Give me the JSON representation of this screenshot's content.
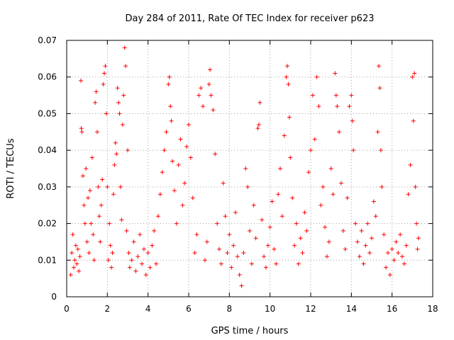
{
  "chart_data": {
    "type": "scatter",
    "title": "Day 284 of 2011, Rate Of TEC Index for receiver p623",
    "xlabel": "GPS time / hours",
    "ylabel": "ROTI / TECUs",
    "xlim": [
      0,
      18
    ],
    "ylim": [
      0,
      0.07
    ],
    "x_ticks": [
      "0",
      "2",
      "4",
      "6",
      "8",
      "10",
      "12",
      "14",
      "16",
      "18"
    ],
    "y_ticks": [
      "0",
      "0.01",
      "0.02",
      "0.03",
      "0.04",
      "0.05",
      "0.06",
      "0.07"
    ],
    "grid": true,
    "marker": "+",
    "series": [
      {
        "color": "#ff0000",
        "points": [
          [
            0.2,
            0.006
          ],
          [
            0.25,
            0.012
          ],
          [
            0.3,
            0.017
          ],
          [
            0.35,
            0.008
          ],
          [
            0.4,
            0.01
          ],
          [
            0.45,
            0.014
          ],
          [
            0.5,
            0.009
          ],
          [
            0.55,
            0.013
          ],
          [
            0.6,
            0.007
          ],
          [
            0.65,
            0.011
          ],
          [
            0.7,
            0.059
          ],
          [
            0.72,
            0.046
          ],
          [
            0.75,
            0.045
          ],
          [
            0.8,
            0.033
          ],
          [
            0.85,
            0.025
          ],
          [
            0.9,
            0.02
          ],
          [
            0.95,
            0.035
          ],
          [
            1.0,
            0.015
          ],
          [
            1.05,
            0.027
          ],
          [
            1.1,
            0.012
          ],
          [
            1.15,
            0.029
          ],
          [
            1.2,
            0.02
          ],
          [
            1.25,
            0.038
          ],
          [
            1.3,
            0.017
          ],
          [
            1.35,
            0.01
          ],
          [
            1.4,
            0.053
          ],
          [
            1.45,
            0.056
          ],
          [
            1.5,
            0.045
          ],
          [
            1.55,
            0.03
          ],
          [
            1.6,
            0.022
          ],
          [
            1.65,
            0.015
          ],
          [
            1.7,
            0.025
          ],
          [
            1.75,
            0.032
          ],
          [
            1.8,
            0.058
          ],
          [
            1.85,
            0.061
          ],
          [
            1.9,
            0.063
          ],
          [
            1.95,
            0.05
          ],
          [
            2.0,
            0.03
          ],
          [
            2.05,
            0.01
          ],
          [
            2.1,
            0.02
          ],
          [
            2.15,
            0.014
          ],
          [
            2.2,
            0.008
          ],
          [
            2.25,
            0.012
          ],
          [
            2.3,
            0.028
          ],
          [
            2.35,
            0.036
          ],
          [
            2.4,
            0.042
          ],
          [
            2.45,
            0.039
          ],
          [
            2.5,
            0.057
          ],
          [
            2.55,
            0.053
          ],
          [
            2.6,
            0.05
          ],
          [
            2.65,
            0.03
          ],
          [
            2.7,
            0.021
          ],
          [
            2.75,
            0.047
          ],
          [
            2.8,
            0.055
          ],
          [
            2.85,
            0.068
          ],
          [
            2.9,
            0.063
          ],
          [
            2.95,
            0.018
          ],
          [
            3.0,
            0.04
          ],
          [
            3.05,
            0.012
          ],
          [
            3.1,
            0.008
          ],
          [
            3.2,
            0.01
          ],
          [
            3.3,
            0.015
          ],
          [
            3.4,
            0.007
          ],
          [
            3.5,
            0.011
          ],
          [
            3.6,
            0.017
          ],
          [
            3.7,
            0.009
          ],
          [
            3.8,
            0.013
          ],
          [
            3.9,
            0.006
          ],
          [
            4.0,
            0.012
          ],
          [
            4.1,
            0.008
          ],
          [
            4.2,
            0.014
          ],
          [
            4.3,
            0.018
          ],
          [
            4.4,
            0.009
          ],
          [
            4.5,
            0.022
          ],
          [
            4.6,
            0.028
          ],
          [
            4.7,
            0.034
          ],
          [
            4.8,
            0.04
          ],
          [
            4.9,
            0.045
          ],
          [
            5.0,
            0.058
          ],
          [
            5.05,
            0.06
          ],
          [
            5.1,
            0.052
          ],
          [
            5.15,
            0.048
          ],
          [
            5.2,
            0.037
          ],
          [
            5.3,
            0.029
          ],
          [
            5.4,
            0.02
          ],
          [
            5.5,
            0.036
          ],
          [
            5.6,
            0.043
          ],
          [
            5.7,
            0.025
          ],
          [
            5.8,
            0.031
          ],
          [
            5.9,
            0.041
          ],
          [
            6.0,
            0.047
          ],
          [
            6.1,
            0.038
          ],
          [
            6.2,
            0.027
          ],
          [
            6.3,
            0.012
          ],
          [
            6.4,
            0.017
          ],
          [
            6.5,
            0.055
          ],
          [
            6.6,
            0.057
          ],
          [
            6.7,
            0.052
          ],
          [
            6.8,
            0.01
          ],
          [
            6.9,
            0.015
          ],
          [
            7.0,
            0.058
          ],
          [
            7.05,
            0.062
          ],
          [
            7.1,
            0.055
          ],
          [
            7.2,
            0.051
          ],
          [
            7.3,
            0.039
          ],
          [
            7.4,
            0.02
          ],
          [
            7.5,
            0.013
          ],
          [
            7.6,
            0.009
          ],
          [
            7.7,
            0.031
          ],
          [
            7.8,
            0.022
          ],
          [
            7.9,
            0.012
          ],
          [
            8.0,
            0.017
          ],
          [
            8.1,
            0.008
          ],
          [
            8.2,
            0.014
          ],
          [
            8.3,
            0.023
          ],
          [
            8.4,
            0.011
          ],
          [
            8.5,
            0.006
          ],
          [
            8.6,
            0.003
          ],
          [
            8.7,
            0.012
          ],
          [
            8.8,
            0.035
          ],
          [
            8.9,
            0.03
          ],
          [
            9.0,
            0.018
          ],
          [
            9.1,
            0.009
          ],
          [
            9.2,
            0.025
          ],
          [
            9.3,
            0.016
          ],
          [
            9.4,
            0.046
          ],
          [
            9.45,
            0.047
          ],
          [
            9.5,
            0.053
          ],
          [
            9.6,
            0.021
          ],
          [
            9.7,
            0.011
          ],
          [
            9.8,
            0.008
          ],
          [
            9.9,
            0.014
          ],
          [
            10.0,
            0.019
          ],
          [
            10.1,
            0.026
          ],
          [
            10.2,
            0.013
          ],
          [
            10.3,
            0.009
          ],
          [
            10.4,
            0.028
          ],
          [
            10.5,
            0.035
          ],
          [
            10.6,
            0.022
          ],
          [
            10.7,
            0.044
          ],
          [
            10.8,
            0.06
          ],
          [
            10.85,
            0.063
          ],
          [
            10.9,
            0.058
          ],
          [
            10.95,
            0.049
          ],
          [
            11.0,
            0.038
          ],
          [
            11.1,
            0.027
          ],
          [
            11.2,
            0.014
          ],
          [
            11.3,
            0.02
          ],
          [
            11.4,
            0.009
          ],
          [
            11.5,
            0.016
          ],
          [
            11.6,
            0.012
          ],
          [
            11.7,
            0.023
          ],
          [
            11.8,
            0.018
          ],
          [
            11.9,
            0.034
          ],
          [
            12.0,
            0.04
          ],
          [
            12.1,
            0.055
          ],
          [
            12.2,
            0.043
          ],
          [
            12.3,
            0.06
          ],
          [
            12.4,
            0.052
          ],
          [
            12.5,
            0.025
          ],
          [
            12.6,
            0.03
          ],
          [
            12.7,
            0.019
          ],
          [
            12.8,
            0.011
          ],
          [
            12.9,
            0.015
          ],
          [
            13.0,
            0.035
          ],
          [
            13.1,
            0.028
          ],
          [
            13.2,
            0.061
          ],
          [
            13.25,
            0.055
          ],
          [
            13.3,
            0.052
          ],
          [
            13.4,
            0.045
          ],
          [
            13.5,
            0.031
          ],
          [
            13.6,
            0.018
          ],
          [
            13.7,
            0.013
          ],
          [
            13.8,
            0.027
          ],
          [
            13.9,
            0.052
          ],
          [
            14.0,
            0.055
          ],
          [
            14.05,
            0.048
          ],
          [
            14.1,
            0.04
          ],
          [
            14.2,
            0.02
          ],
          [
            14.3,
            0.015
          ],
          [
            14.4,
            0.011
          ],
          [
            14.5,
            0.018
          ],
          [
            14.6,
            0.009
          ],
          [
            14.7,
            0.014
          ],
          [
            14.8,
            0.02
          ],
          [
            14.9,
            0.012
          ],
          [
            15.0,
            0.016
          ],
          [
            15.1,
            0.026
          ],
          [
            15.2,
            0.022
          ],
          [
            15.3,
            0.045
          ],
          [
            15.35,
            0.063
          ],
          [
            15.4,
            0.057
          ],
          [
            15.45,
            0.04
          ],
          [
            15.5,
            0.03
          ],
          [
            15.6,
            0.017
          ],
          [
            15.7,
            0.008
          ],
          [
            15.8,
            0.012
          ],
          [
            15.9,
            0.006
          ],
          [
            16.0,
            0.013
          ],
          [
            16.1,
            0.01
          ],
          [
            16.2,
            0.015
          ],
          [
            16.3,
            0.012
          ],
          [
            16.4,
            0.017
          ],
          [
            16.5,
            0.011
          ],
          [
            16.6,
            0.009
          ],
          [
            16.7,
            0.014
          ],
          [
            16.8,
            0.028
          ],
          [
            16.9,
            0.036
          ],
          [
            17.0,
            0.06
          ],
          [
            17.05,
            0.048
          ],
          [
            17.1,
            0.061
          ],
          [
            17.15,
            0.03
          ],
          [
            17.2,
            0.02
          ],
          [
            17.25,
            0.013
          ],
          [
            17.3,
            0.016
          ]
        ]
      }
    ]
  }
}
